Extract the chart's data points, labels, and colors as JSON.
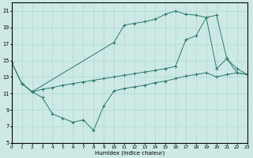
{
  "xlabel": "Humidex (Indice chaleur)",
  "bg_color": "#cce9e6",
  "grid_color": "#aad4d0",
  "line_color": "#2a7a6a",
  "xlim": [
    0,
    23
  ],
  "ylim": [
    5,
    22
  ],
  "xticks": [
    0,
    1,
    2,
    3,
    4,
    5,
    6,
    7,
    8,
    9,
    10,
    11,
    12,
    13,
    14,
    15,
    16,
    17,
    18,
    19,
    20,
    21,
    22,
    23
  ],
  "yticks": [
    5,
    7,
    9,
    11,
    13,
    15,
    17,
    19,
    21
  ],
  "curve1_x": [
    0,
    1,
    2,
    10,
    11,
    12,
    13,
    14,
    15,
    16,
    17,
    18,
    19,
    20,
    21,
    22,
    23
  ],
  "curve1_y": [
    14.8,
    12.2,
    11.2,
    17.2,
    19.3,
    19.5,
    19.7,
    20.0,
    20.6,
    21.0,
    20.6,
    20.5,
    20.2,
    14.0,
    15.2,
    13.5,
    13.3
  ],
  "curve2_x": [
    1,
    2,
    3,
    4,
    5,
    6,
    7,
    8,
    9,
    10,
    11,
    12,
    13,
    14,
    15,
    16,
    17,
    18,
    19,
    20,
    21,
    22,
    23
  ],
  "curve2_y": [
    12.2,
    11.2,
    10.5,
    8.5,
    8.0,
    7.5,
    7.8,
    6.5,
    9.5,
    11.3,
    11.6,
    11.8,
    12.0,
    12.3,
    12.5,
    12.8,
    13.1,
    13.3,
    13.5,
    13.0,
    13.3,
    13.5,
    13.3
  ],
  "curve3_x": [
    0,
    1,
    2,
    3,
    4,
    5,
    6,
    7,
    8,
    9,
    10,
    11,
    12,
    13,
    14,
    15,
    16,
    17,
    18,
    19,
    20,
    21,
    22,
    23
  ],
  "curve3_y": [
    14.8,
    12.2,
    11.2,
    11.5,
    11.7,
    12.0,
    12.2,
    12.4,
    12.6,
    12.8,
    13.0,
    13.2,
    13.4,
    13.6,
    13.8,
    14.0,
    14.3,
    17.5,
    18.0,
    20.2,
    20.5,
    15.2,
    14.0,
    13.3
  ]
}
